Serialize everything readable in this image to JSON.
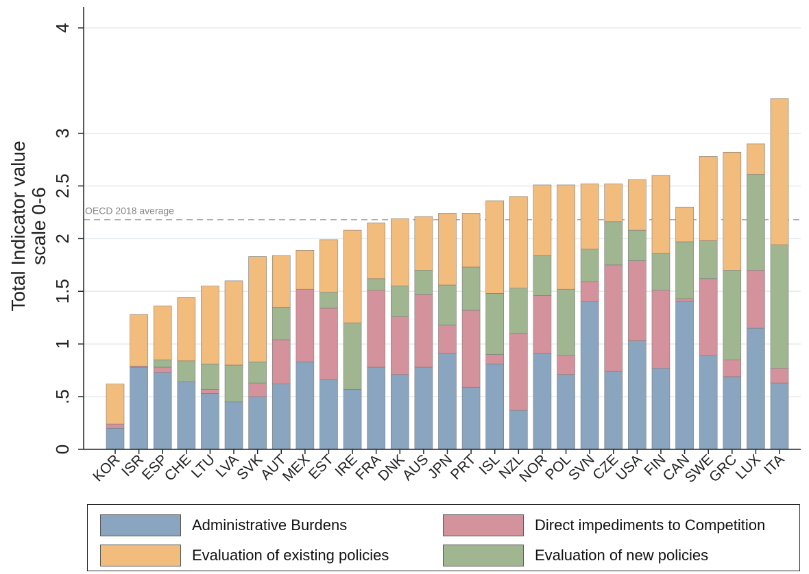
{
  "chart_data": {
    "type": "stacked-bar",
    "ylabel": "Total Indicator value scale 0-6",
    "ylabel_lines": [
      "Total Indicator value",
      "scale 0-6"
    ],
    "ylim": [
      0,
      4.2
    ],
    "yticks": [
      0,
      0.5,
      1,
      1.5,
      2,
      2.5,
      3,
      4
    ],
    "ytick_labels": [
      "0",
      ".5",
      "1",
      "1.5",
      "2",
      "2.5",
      "3",
      "4"
    ],
    "grid": true,
    "reference_line": {
      "label": "OECD 2018 average",
      "value": 2.18
    },
    "categories": [
      "KOR",
      "ISR",
      "ESP",
      "CHE",
      "LTU",
      "LVA",
      "SVK",
      "AUT",
      "MEX",
      "EST",
      "IRE",
      "FRA",
      "DNK",
      "AUS",
      "JPN",
      "PRT",
      "ISL",
      "NZL",
      "NOR",
      "POL",
      "SVN",
      "CZE",
      "USA",
      "FIN",
      "CAN",
      "SWE",
      "GRC",
      "LUX",
      "ITA"
    ],
    "series": [
      {
        "name": "Administrative Burdens",
        "color": "#8aa5bf",
        "values": [
          0.2,
          0.78,
          0.73,
          0.64,
          0.53,
          0.45,
          0.5,
          0.62,
          0.83,
          0.66,
          0.57,
          0.78,
          0.71,
          0.78,
          0.91,
          0.59,
          0.81,
          0.37,
          0.91,
          0.71,
          1.4,
          0.74,
          1.03,
          0.77,
          1.4,
          0.89,
          0.69,
          1.15,
          0.63
        ]
      },
      {
        "name": "Direct impediments to Competition",
        "color": "#d4929c",
        "values": [
          0.04,
          0.01,
          0.05,
          0.0,
          0.04,
          0.0,
          0.13,
          0.42,
          0.69,
          0.68,
          0.0,
          0.73,
          0.55,
          0.69,
          0.27,
          0.73,
          0.09,
          0.73,
          0.55,
          0.18,
          0.19,
          1.01,
          0.76,
          0.74,
          0.03,
          0.73,
          0.16,
          0.55,
          0.14
        ]
      },
      {
        "name": "Evaluation of new policies",
        "color": "#9fb691",
        "values": [
          0.0,
          0.0,
          0.07,
          0.2,
          0.24,
          0.35,
          0.2,
          0.31,
          0.0,
          0.15,
          0.63,
          0.11,
          0.29,
          0.23,
          0.38,
          0.41,
          0.58,
          0.43,
          0.38,
          0.63,
          0.31,
          0.41,
          0.29,
          0.35,
          0.54,
          0.36,
          0.85,
          0.91,
          1.17
        ]
      },
      {
        "name": "Evaluation of existing policies",
        "color": "#f2bc7c",
        "values": [
          0.38,
          0.49,
          0.51,
          0.6,
          0.74,
          0.8,
          1.0,
          0.49,
          0.37,
          0.5,
          0.88,
          0.53,
          0.64,
          0.51,
          0.68,
          0.51,
          0.88,
          0.87,
          0.67,
          0.99,
          0.62,
          0.36,
          0.48,
          0.74,
          0.33,
          0.8,
          1.12,
          0.29,
          1.39
        ]
      }
    ],
    "legend": {
      "placement": "bottom",
      "entries": [
        {
          "name": "Administrative Burdens",
          "color": "#8aa5bf"
        },
        {
          "name": "Direct impediments to Competition",
          "color": "#d4929c"
        },
        {
          "name": "Evaluation of existing policies",
          "color": "#f2bc7c"
        },
        {
          "name": "Evaluation of new policies",
          "color": "#9fb691"
        }
      ]
    }
  }
}
